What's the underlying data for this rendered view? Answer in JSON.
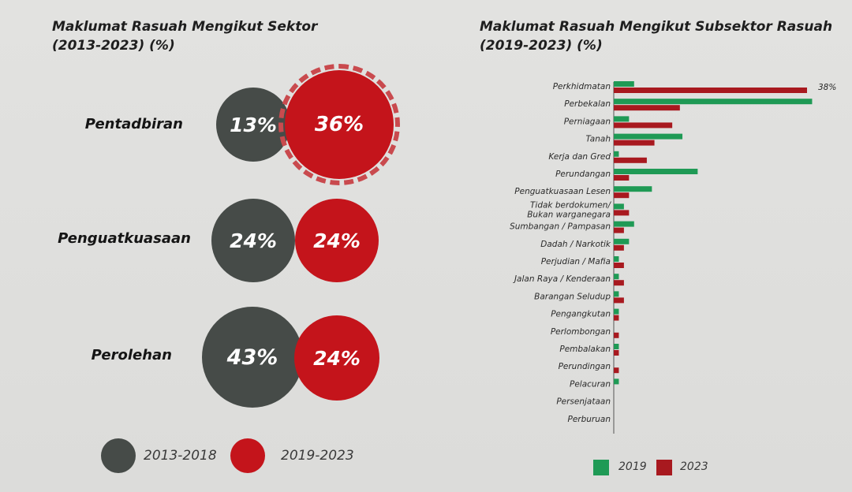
{
  "left_chart": {
    "title_line1": "Maklumat Rasuah Mengikut Sektor",
    "title_line2": "(2013-2023) (%)",
    "sectors": [
      {
        "label": "Pentadbiran",
        "old": "13%",
        "new": "36%"
      },
      {
        "label": "Penguatkuasaan",
        "old": "24%",
        "new": "24%"
      },
      {
        "label": "Perolehan",
        "old": "43%",
        "new": "24%"
      }
    ],
    "legend": [
      {
        "label": "2013-2018",
        "color": "#464b48"
      },
      {
        "label": "2019-2023",
        "color": "#c4141b"
      }
    ]
  },
  "right_chart": {
    "title_line1": "Maklumat Rasuah Mengikut Subsektor Rasuah",
    "title_line2": "(2019-2023) (%)",
    "max_label": "38%",
    "legend": [
      {
        "label": "2019",
        "color": "#1f9a55"
      },
      {
        "label": "2023",
        "color": "#a8191f"
      }
    ]
  },
  "chart_data": [
    {
      "type": "bubble",
      "title": "Maklumat Rasuah Mengikut Sektor (2013-2023) (%)",
      "categories": [
        "Pentadbiran",
        "Penguatkuasaan",
        "Perolehan"
      ],
      "series": [
        {
          "name": "2013-2018",
          "values": [
            13,
            24,
            43
          ]
        },
        {
          "name": "2019-2023",
          "values": [
            36,
            24,
            24
          ]
        }
      ]
    },
    {
      "type": "bar",
      "orientation": "horizontal",
      "title": "Maklumat Rasuah Mengikut Subsektor Rasuah (2019-2023) (%)",
      "categories": [
        "Perkhidmatan",
        "Perbekalan",
        "Perniagaan",
        "Tanah",
        "Kerja dan Gred",
        "Perundangan",
        "Penguatkuasaan Lesen",
        "Tidak berdokumen/ Bukan warganegara",
        "Sumbangan / Pampasan",
        "Dadah / Narkotik",
        "Perjudian / Mafia",
        "Jalan Raya / Kenderaan",
        "Barangan Seludup",
        "Pengangkutan",
        "Perlombongan",
        "Pembalakan",
        "Perundingan",
        "Pelacuran",
        "Persenjataan",
        "Perburuan"
      ],
      "series": [
        {
          "name": "2019",
          "values": [
            4,
            39,
            3,
            13.5,
            1,
            16.5,
            7.5,
            2,
            4,
            3,
            1,
            1,
            1,
            1,
            0,
            1,
            0,
            1,
            0,
            0
          ]
        },
        {
          "name": "2023",
          "values": [
            38,
            13,
            11.5,
            8,
            6.5,
            3,
            3,
            3,
            2,
            2,
            2,
            2,
            2,
            1,
            1,
            1,
            1,
            0,
            0,
            0
          ]
        }
      ],
      "xlim": [
        0,
        40
      ],
      "annotations": [
        "38%"
      ]
    }
  ]
}
